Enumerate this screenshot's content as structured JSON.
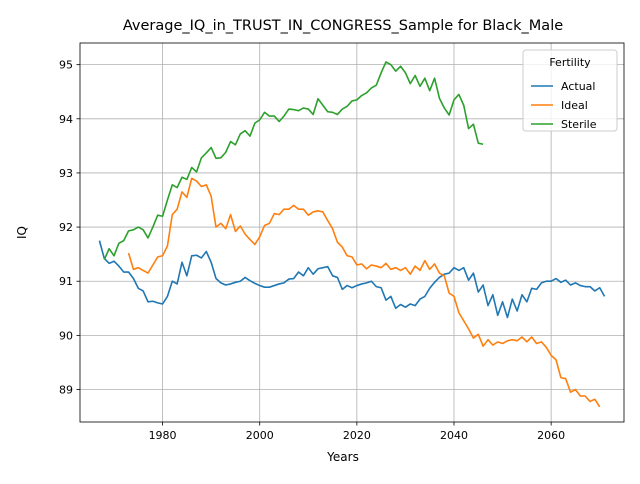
{
  "chart_data": {
    "type": "line",
    "title": "Average_IQ_in_TRUST_IN_CONGRESS_Sample for Black_Male",
    "xlabel": "Years",
    "ylabel": "IQ",
    "xlim": [
      1963,
      2075
    ],
    "ylim": [
      88.4,
      95.4
    ],
    "xticks": [
      1980,
      2000,
      2020,
      2040,
      2060
    ],
    "yticks": [
      89,
      90,
      91,
      92,
      93,
      94,
      95
    ],
    "grid": true,
    "legend": {
      "title": "Fertility",
      "position": "upper right"
    },
    "series": [
      {
        "name": "Actual",
        "color": "#1f77b4",
        "points": [
          [
            1967,
            91.75
          ],
          [
            1968,
            91.42
          ],
          [
            1969,
            91.33
          ],
          [
            1970,
            91.37
          ],
          [
            1971,
            91.28
          ],
          [
            1972,
            91.17
          ],
          [
            1973,
            91.17
          ],
          [
            1974,
            91.05
          ],
          [
            1975,
            90.87
          ],
          [
            1976,
            90.82
          ],
          [
            1977,
            90.62
          ],
          [
            1978,
            90.63
          ],
          [
            1979,
            90.6
          ],
          [
            1980,
            90.58
          ],
          [
            1981,
            90.72
          ],
          [
            1982,
            91.0
          ],
          [
            1983,
            90.95
          ],
          [
            1984,
            91.35
          ],
          [
            1985,
            91.1
          ],
          [
            1986,
            91.47
          ],
          [
            1987,
            91.48
          ],
          [
            1988,
            91.43
          ],
          [
            1989,
            91.55
          ],
          [
            1990,
            91.35
          ],
          [
            1991,
            91.05
          ],
          [
            1992,
            90.97
          ],
          [
            1993,
            90.93
          ],
          [
            1994,
            90.95
          ],
          [
            1995,
            90.98
          ],
          [
            1996,
            91.0
          ],
          [
            1997,
            91.07
          ],
          [
            1998,
            91.01
          ],
          [
            1999,
            90.96
          ],
          [
            2000,
            90.92
          ],
          [
            2001,
            90.89
          ],
          [
            2002,
            90.89
          ],
          [
            2003,
            90.92
          ],
          [
            2004,
            90.95
          ],
          [
            2005,
            90.97
          ],
          [
            2006,
            91.04
          ],
          [
            2007,
            91.05
          ],
          [
            2008,
            91.17
          ],
          [
            2009,
            91.1
          ],
          [
            2010,
            91.25
          ],
          [
            2011,
            91.13
          ],
          [
            2012,
            91.23
          ],
          [
            2013,
            91.25
          ],
          [
            2014,
            91.27
          ],
          [
            2015,
            91.1
          ],
          [
            2016,
            91.07
          ],
          [
            2017,
            90.85
          ],
          [
            2018,
            90.92
          ],
          [
            2019,
            90.88
          ],
          [
            2020,
            90.92
          ],
          [
            2021,
            90.95
          ],
          [
            2022,
            90.97
          ],
          [
            2023,
            91.0
          ],
          [
            2024,
            90.9
          ],
          [
            2025,
            90.88
          ],
          [
            2026,
            90.65
          ],
          [
            2027,
            90.72
          ],
          [
            2028,
            90.5
          ],
          [
            2029,
            90.57
          ],
          [
            2030,
            90.52
          ],
          [
            2031,
            90.58
          ],
          [
            2032,
            90.55
          ],
          [
            2033,
            90.67
          ],
          [
            2034,
            90.72
          ],
          [
            2035,
            90.87
          ],
          [
            2036,
            90.98
          ],
          [
            2037,
            91.07
          ],
          [
            2038,
            91.13
          ],
          [
            2039,
            91.15
          ],
          [
            2040,
            91.25
          ],
          [
            2041,
            91.2
          ],
          [
            2042,
            91.25
          ],
          [
            2043,
            91.02
          ],
          [
            2044,
            91.15
          ],
          [
            2045,
            90.8
          ],
          [
            2046,
            90.93
          ],
          [
            2047,
            90.55
          ],
          [
            2048,
            90.75
          ],
          [
            2049,
            90.37
          ],
          [
            2050,
            90.62
          ],
          [
            2051,
            90.33
          ],
          [
            2052,
            90.67
          ],
          [
            2053,
            90.45
          ],
          [
            2054,
            90.75
          ],
          [
            2055,
            90.62
          ],
          [
            2056,
            90.87
          ],
          [
            2057,
            90.85
          ],
          [
            2058,
            90.97
          ],
          [
            2059,
            91.0
          ],
          [
            2060,
            91.0
          ],
          [
            2061,
            91.05
          ],
          [
            2062,
            90.98
          ],
          [
            2063,
            91.02
          ],
          [
            2064,
            90.93
          ],
          [
            2065,
            90.97
          ],
          [
            2066,
            90.92
          ],
          [
            2067,
            90.9
          ],
          [
            2068,
            90.9
          ],
          [
            2069,
            90.82
          ],
          [
            2070,
            90.88
          ],
          [
            2071,
            90.72
          ]
        ]
      },
      {
        "name": "Ideal",
        "color": "#ff7f0e",
        "points": [
          [
            1973,
            91.52
          ],
          [
            1974,
            91.22
          ],
          [
            1975,
            91.25
          ],
          [
            1976,
            91.2
          ],
          [
            1977,
            91.15
          ],
          [
            1978,
            91.3
          ],
          [
            1979,
            91.45
          ],
          [
            1980,
            91.47
          ],
          [
            1981,
            91.65
          ],
          [
            1982,
            92.23
          ],
          [
            1983,
            92.33
          ],
          [
            1984,
            92.65
          ],
          [
            1985,
            92.55
          ],
          [
            1986,
            92.9
          ],
          [
            1987,
            92.85
          ],
          [
            1988,
            92.75
          ],
          [
            1989,
            92.78
          ],
          [
            1990,
            92.57
          ],
          [
            1991,
            92.0
          ],
          [
            1992,
            92.07
          ],
          [
            1993,
            91.97
          ],
          [
            1994,
            92.23
          ],
          [
            1995,
            91.92
          ],
          [
            1996,
            92.02
          ],
          [
            1997,
            91.87
          ],
          [
            1998,
            91.77
          ],
          [
            1999,
            91.68
          ],
          [
            2000,
            91.82
          ],
          [
            2001,
            92.03
          ],
          [
            2002,
            92.07
          ],
          [
            2003,
            92.25
          ],
          [
            2004,
            92.23
          ],
          [
            2005,
            92.33
          ],
          [
            2006,
            92.33
          ],
          [
            2007,
            92.4
          ],
          [
            2008,
            92.33
          ],
          [
            2009,
            92.33
          ],
          [
            2010,
            92.22
          ],
          [
            2011,
            92.28
          ],
          [
            2012,
            92.3
          ],
          [
            2013,
            92.28
          ],
          [
            2014,
            92.12
          ],
          [
            2015,
            91.97
          ],
          [
            2016,
            91.72
          ],
          [
            2017,
            91.63
          ],
          [
            2018,
            91.47
          ],
          [
            2019,
            91.45
          ],
          [
            2020,
            91.3
          ],
          [
            2021,
            91.32
          ],
          [
            2022,
            91.23
          ],
          [
            2023,
            91.3
          ],
          [
            2024,
            91.28
          ],
          [
            2025,
            91.25
          ],
          [
            2026,
            91.33
          ],
          [
            2027,
            91.22
          ],
          [
            2028,
            91.25
          ],
          [
            2029,
            91.2
          ],
          [
            2030,
            91.25
          ],
          [
            2031,
            91.13
          ],
          [
            2032,
            91.28
          ],
          [
            2033,
            91.2
          ],
          [
            2034,
            91.38
          ],
          [
            2035,
            91.22
          ],
          [
            2036,
            91.32
          ],
          [
            2037,
            91.15
          ],
          [
            2038,
            91.1
          ],
          [
            2039,
            90.78
          ],
          [
            2040,
            90.72
          ],
          [
            2041,
            90.42
          ],
          [
            2042,
            90.27
          ],
          [
            2043,
            90.12
          ],
          [
            2044,
            89.95
          ],
          [
            2045,
            90.02
          ],
          [
            2046,
            89.8
          ],
          [
            2047,
            89.92
          ],
          [
            2048,
            89.82
          ],
          [
            2049,
            89.88
          ],
          [
            2050,
            89.85
          ],
          [
            2051,
            89.9
          ],
          [
            2052,
            89.92
          ],
          [
            2053,
            89.9
          ],
          [
            2054,
            89.97
          ],
          [
            2055,
            89.88
          ],
          [
            2056,
            89.97
          ],
          [
            2057,
            89.85
          ],
          [
            2058,
            89.88
          ],
          [
            2059,
            89.78
          ],
          [
            2060,
            89.63
          ],
          [
            2061,
            89.55
          ],
          [
            2062,
            89.22
          ],
          [
            2063,
            89.2
          ],
          [
            2064,
            88.95
          ],
          [
            2065,
            89.0
          ],
          [
            2066,
            88.88
          ],
          [
            2067,
            88.88
          ],
          [
            2068,
            88.78
          ],
          [
            2069,
            88.82
          ],
          [
            2070,
            88.68
          ]
        ]
      },
      {
        "name": "Sterile",
        "color": "#2ca02c",
        "points": [
          [
            1968,
            91.4
          ],
          [
            1969,
            91.6
          ],
          [
            1970,
            91.47
          ],
          [
            1971,
            91.7
          ],
          [
            1972,
            91.75
          ],
          [
            1973,
            91.93
          ],
          [
            1974,
            91.95
          ],
          [
            1975,
            92.0
          ],
          [
            1976,
            91.95
          ],
          [
            1977,
            91.8
          ],
          [
            1978,
            92.0
          ],
          [
            1979,
            92.22
          ],
          [
            1980,
            92.2
          ],
          [
            1981,
            92.5
          ],
          [
            1982,
            92.78
          ],
          [
            1983,
            92.73
          ],
          [
            1984,
            92.92
          ],
          [
            1985,
            92.88
          ],
          [
            1986,
            93.1
          ],
          [
            1987,
            93.02
          ],
          [
            1988,
            93.28
          ],
          [
            1989,
            93.37
          ],
          [
            1990,
            93.47
          ],
          [
            1991,
            93.27
          ],
          [
            1992,
            93.28
          ],
          [
            1993,
            93.38
          ],
          [
            1994,
            93.58
          ],
          [
            1995,
            93.52
          ],
          [
            1996,
            93.72
          ],
          [
            1997,
            93.78
          ],
          [
            1998,
            93.68
          ],
          [
            1999,
            93.92
          ],
          [
            2000,
            93.98
          ],
          [
            2001,
            94.12
          ],
          [
            2002,
            94.05
          ],
          [
            2003,
            94.05
          ],
          [
            2004,
            93.95
          ],
          [
            2005,
            94.05
          ],
          [
            2006,
            94.18
          ],
          [
            2007,
            94.17
          ],
          [
            2008,
            94.15
          ],
          [
            2009,
            94.2
          ],
          [
            2010,
            94.18
          ],
          [
            2011,
            94.08
          ],
          [
            2012,
            94.37
          ],
          [
            2013,
            94.25
          ],
          [
            2014,
            94.13
          ],
          [
            2015,
            94.12
          ],
          [
            2016,
            94.08
          ],
          [
            2017,
            94.18
          ],
          [
            2018,
            94.23
          ],
          [
            2019,
            94.33
          ],
          [
            2020,
            94.35
          ],
          [
            2021,
            94.43
          ],
          [
            2022,
            94.48
          ],
          [
            2023,
            94.57
          ],
          [
            2024,
            94.62
          ],
          [
            2025,
            94.85
          ],
          [
            2026,
            95.05
          ],
          [
            2027,
            95.0
          ],
          [
            2028,
            94.88
          ],
          [
            2029,
            94.97
          ],
          [
            2030,
            94.85
          ],
          [
            2031,
            94.65
          ],
          [
            2032,
            94.8
          ],
          [
            2033,
            94.6
          ],
          [
            2034,
            94.75
          ],
          [
            2035,
            94.52
          ],
          [
            2036,
            94.75
          ],
          [
            2037,
            94.38
          ],
          [
            2038,
            94.2
          ],
          [
            2039,
            94.07
          ],
          [
            2040,
            94.35
          ],
          [
            2041,
            94.45
          ],
          [
            2042,
            94.25
          ],
          [
            2043,
            93.82
          ],
          [
            2044,
            93.9
          ],
          [
            2045,
            93.55
          ],
          [
            2046,
            93.53
          ]
        ]
      }
    ]
  }
}
